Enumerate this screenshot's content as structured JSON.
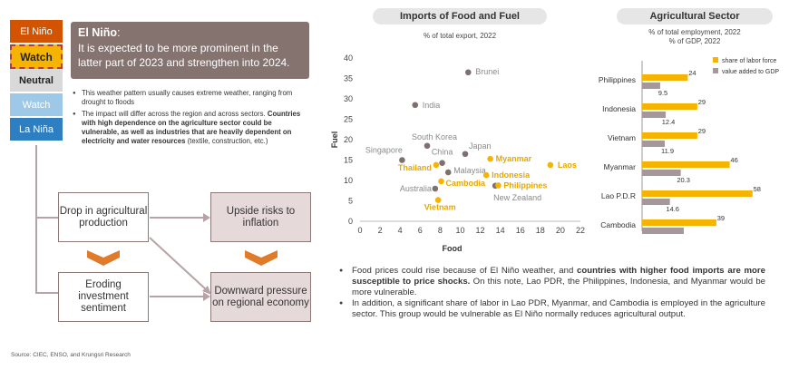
{
  "enso_scale": {
    "levels": [
      {
        "label": "El Niño",
        "color": "#d35400"
      },
      {
        "label": "Watch",
        "color": "#f5b400"
      },
      {
        "label": "Neutral",
        "color": "#d9d9d9"
      },
      {
        "label": "Watch",
        "color": "#9ec8e8"
      },
      {
        "label": "La Niña",
        "color": "#2d7fc1"
      }
    ],
    "highlighted_index": 1
  },
  "callout": {
    "title": "El Niño",
    "title_suffix": ":",
    "body": "It is expected to be more prominent in the latter part of 2023 and strengthen into 2024."
  },
  "left_bullets": [
    {
      "text": "This weather pattern usually causes extreme weather, ranging from drought to floods"
    },
    {
      "pre": "The impact will differ across the region and across sectors. ",
      "bold": "Countries with high dependence on the agriculture sector could be vulnerable, as well as industries that are heavily dependent on electricity and water resources",
      "post": " (textile, construction, etc.)"
    }
  ],
  "flow": {
    "box1": "Drop in agricultural production",
    "box2": "Upside risks to inflation",
    "box3": "Eroding investment sentiment",
    "box4": "Downward pressure on regional economy"
  },
  "source": "Source: CIEC, ENSO, and Krungsri Research",
  "scatter": {
    "title": "Imports of Food and Fuel",
    "subtitle": "% of total export, 2022"
  },
  "bar": {
    "title": "Agricultural Sector",
    "subtitle1": "% of total employment, 2022",
    "subtitle2": "% of GDP, 2022"
  },
  "chart_data": [
    {
      "type": "scatter",
      "title": "Imports of Food and Fuel",
      "subtitle": "% of total export, 2022",
      "xlabel": "Food",
      "ylabel": "Fuel",
      "xlim": [
        0,
        22
      ],
      "ylim": [
        0,
        40
      ],
      "xticks": [
        0,
        2,
        4,
        6,
        8,
        10,
        12,
        14,
        16,
        18,
        20,
        22
      ],
      "yticks": [
        0,
        5,
        10,
        15,
        20,
        25,
        30,
        35,
        40
      ],
      "grid": false,
      "points": [
        {
          "label": "Brunei",
          "x": 10.8,
          "y": 36.5,
          "color": "#7f6f6f",
          "highlight": false
        },
        {
          "label": "India",
          "x": 5.5,
          "y": 28.5,
          "color": "#7f6f6f",
          "highlight": false
        },
        {
          "label": "South Korea",
          "x": 6.7,
          "y": 18.5,
          "color": "#7f6f6f",
          "highlight": false
        },
        {
          "label": "Japan",
          "x": 10.5,
          "y": 16.5,
          "color": "#7f6f6f",
          "highlight": false
        },
        {
          "label": "China",
          "x": 8.2,
          "y": 14.3,
          "color": "#7f6f6f",
          "highlight": false
        },
        {
          "label": "Singapore",
          "x": 4.2,
          "y": 15.0,
          "color": "#7f6f6f",
          "highlight": false
        },
        {
          "label": "Malaysia",
          "x": 8.8,
          "y": 12.0,
          "color": "#7f6f6f",
          "highlight": false
        },
        {
          "label": "Australia",
          "x": 7.5,
          "y": 8.0,
          "color": "#7f6f6f",
          "highlight": false
        },
        {
          "label": "New Zealand",
          "x": 13.5,
          "y": 8.7,
          "color": "#7f6f6f",
          "highlight": false
        },
        {
          "label": "Myanmar",
          "x": 13.0,
          "y": 15.3,
          "color": "#f5b400",
          "highlight": true
        },
        {
          "label": "Laos",
          "x": 19.0,
          "y": 13.8,
          "color": "#f5b400",
          "highlight": true
        },
        {
          "label": "Thailand",
          "x": 7.6,
          "y": 13.8,
          "color": "#f5b400",
          "highlight": true
        },
        {
          "label": "Indonesia",
          "x": 12.6,
          "y": 11.3,
          "color": "#f5b400",
          "highlight": true
        },
        {
          "label": "Cambodia",
          "x": 8.1,
          "y": 9.8,
          "color": "#f5b400",
          "highlight": true
        },
        {
          "label": "Philippines",
          "x": 13.8,
          "y": 8.8,
          "color": "#f5b400",
          "highlight": true
        },
        {
          "label": "Vietnam",
          "x": 7.8,
          "y": 5.2,
          "color": "#f5b400",
          "highlight": true
        }
      ]
    },
    {
      "type": "bar",
      "orientation": "horizontal",
      "title": "Agricultural Sector",
      "categories": [
        "Philippines",
        "Indonesia",
        "Vietnam",
        "Myanmar",
        "Lao P.D.R",
        "Cambodia"
      ],
      "series": [
        {
          "name": "share of labor force",
          "color": "#f5b400",
          "values": [
            24,
            29,
            29,
            46,
            58,
            39
          ]
        },
        {
          "name": "value added to GDP",
          "color": "#a8979a",
          "values": [
            9.5,
            12.4,
            11.9,
            20.3,
            14.6,
            21.9
          ]
        }
      ],
      "xlim": [
        0,
        70
      ],
      "legend": "top-right"
    }
  ],
  "right_bullets": [
    {
      "pre": "Food prices could rise because of El Niño weather, and ",
      "bold": "countries with higher food imports are more susceptible to price shocks.",
      "post": " On this note, Lao PDR, the Philippines, Indonesia, and Myanmar would be more vulnerable."
    },
    {
      "pre": "In addition, a significant share of labor in Lao PDR, Myanmar, and Cambodia is employed in the agriculture sector. This group would be vulnerable as El Niño normally reduces  agricultural output.",
      "bold": "",
      "post": ""
    }
  ]
}
